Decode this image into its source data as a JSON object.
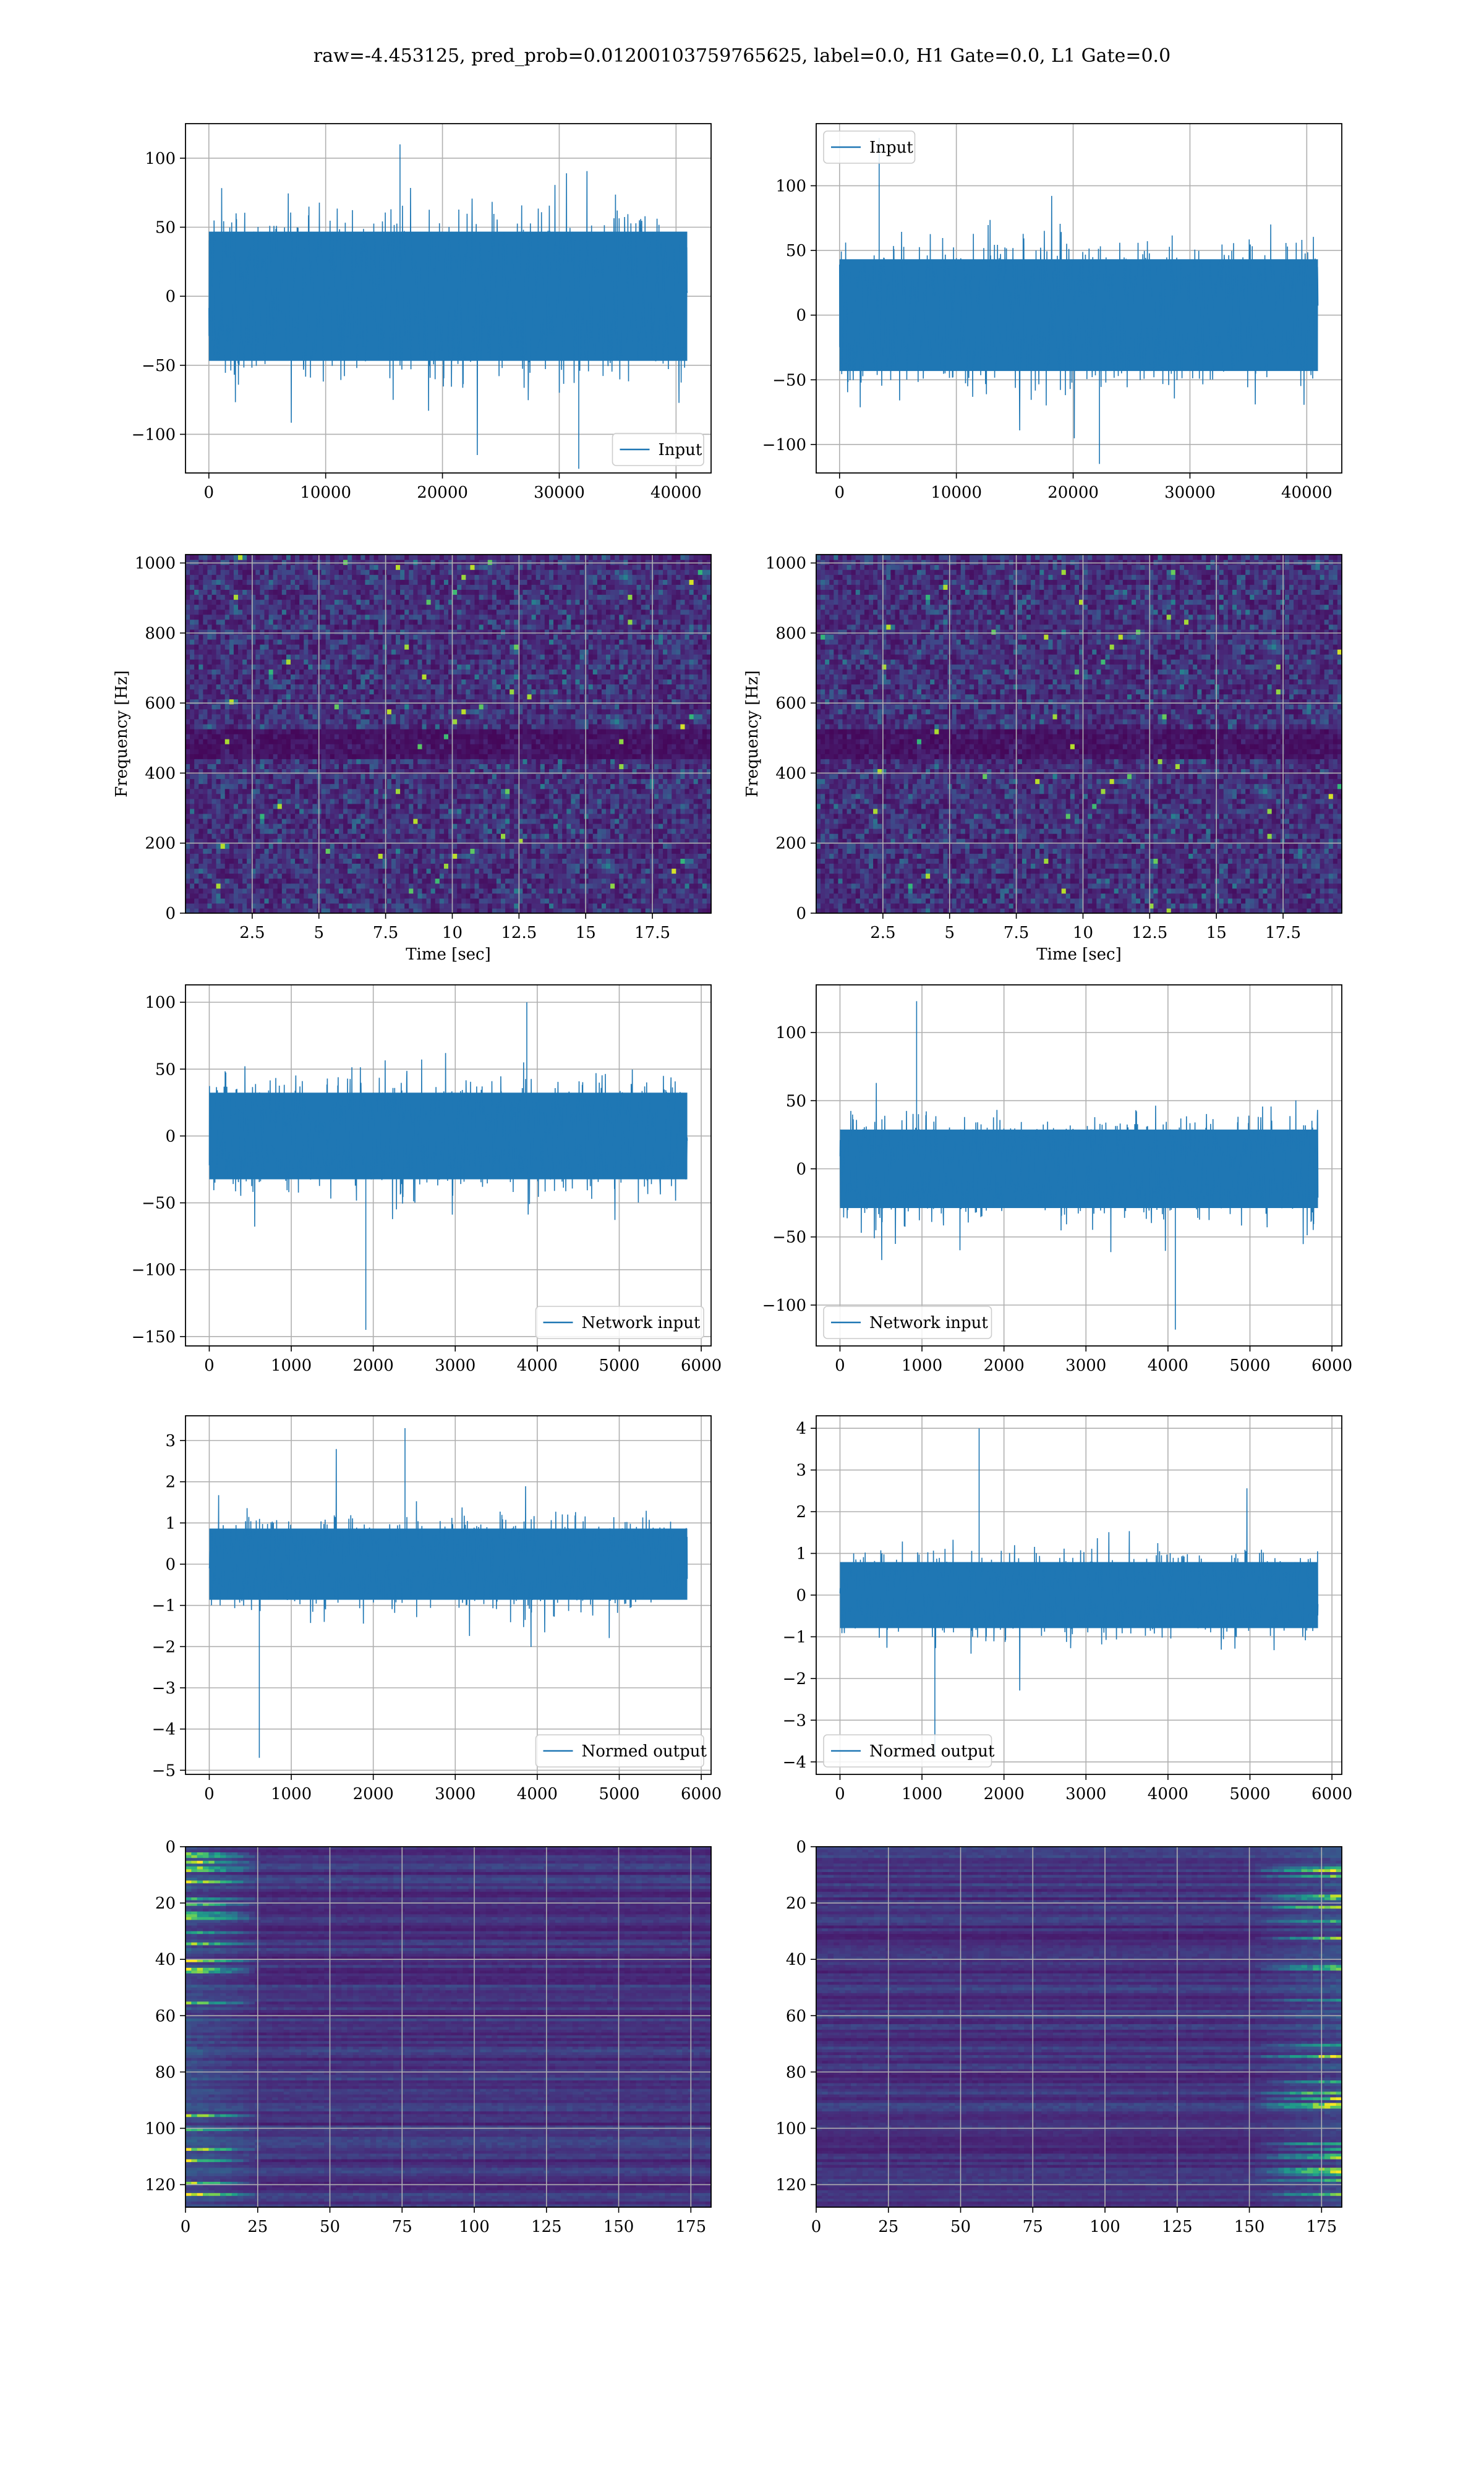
{
  "figure": {
    "suptitle": "raw=-4.453125, pred_prob=0.01200103759765625, label=0.0, H1 Gate=0.0, L1 Gate=0.0"
  },
  "colors": {
    "line": "#1f77b4",
    "grid": "#b0b0b0",
    "viridis": [
      "#440154",
      "#482878",
      "#3e4989",
      "#31688e",
      "#26828e",
      "#1f9e89",
      "#35b779",
      "#6ece58",
      "#b5de2b",
      "#fde725"
    ]
  },
  "chart_data": [
    {
      "type": "line",
      "row": 0,
      "col": 0,
      "series": [
        {
          "name": "Input",
          "x_range": [
            0,
            40960
          ],
          "typical_amplitude": [
            -65,
            65
          ],
          "extremes": [
            -125,
            110
          ]
        }
      ],
      "xlim": [
        -2000,
        43000
      ],
      "ylim": [
        -128,
        125
      ],
      "xticks": [
        0,
        10000,
        20000,
        30000,
        40000
      ],
      "yticks": [
        -100,
        -50,
        0,
        50,
        100
      ],
      "legend": "lower right",
      "grid": true,
      "xlabel": "",
      "ylabel": ""
    },
    {
      "type": "line",
      "row": 0,
      "col": 1,
      "series": [
        {
          "name": "Input",
          "x_range": [
            0,
            40960
          ],
          "typical_amplitude": [
            -60,
            60
          ],
          "extremes": [
            -115,
            137
          ]
        }
      ],
      "xlim": [
        -2000,
        43000
      ],
      "ylim": [
        -122,
        148
      ],
      "xticks": [
        0,
        10000,
        20000,
        30000,
        40000
      ],
      "yticks": [
        -100,
        -50,
        0,
        50,
        100
      ],
      "legend": "upper left",
      "grid": true,
      "xlabel": "",
      "ylabel": ""
    },
    {
      "type": "heatmap",
      "row": 1,
      "col": 0,
      "description_values": {
        "time_range": [
          0,
          19.7
        ],
        "freq_range": [
          0,
          1024
        ],
        "dark_band_freq": [
          440,
          520
        ]
      },
      "xlim": [
        0,
        19.7
      ],
      "ylim": [
        0,
        1024
      ],
      "xticks": [
        2.5,
        5.0,
        7.5,
        10.0,
        12.5,
        15.0,
        17.5
      ],
      "yticks": [
        0,
        200,
        400,
        600,
        800,
        1000
      ],
      "xlabel": "Time [sec]",
      "ylabel": "Frequency [Hz]",
      "grid": true
    },
    {
      "type": "heatmap",
      "row": 1,
      "col": 1,
      "description_values": {
        "time_range": [
          0,
          19.7
        ],
        "freq_range": [
          0,
          1024
        ],
        "dark_band_freq": [
          440,
          520
        ]
      },
      "xlim": [
        0,
        19.7
      ],
      "ylim": [
        0,
        1024
      ],
      "xticks": [
        2.5,
        5.0,
        7.5,
        10.0,
        12.5,
        15.0,
        17.5
      ],
      "yticks": [
        0,
        200,
        400,
        600,
        800,
        1000
      ],
      "xlabel": "Time [sec]",
      "ylabel": "Frequency [Hz]",
      "grid": true
    },
    {
      "type": "line",
      "row": 2,
      "col": 0,
      "series": [
        {
          "name": "Network input",
          "x_range": [
            0,
            5830
          ],
          "typical_amplitude": [
            -45,
            45
          ],
          "extremes": [
            -145,
            100
          ]
        }
      ],
      "xlim": [
        -290,
        6120
      ],
      "ylim": [
        -157,
        113
      ],
      "xticks": [
        0,
        1000,
        2000,
        3000,
        4000,
        5000,
        6000
      ],
      "yticks": [
        -150,
        -100,
        -50,
        0,
        50,
        100
      ],
      "legend": "lower right",
      "grid": true,
      "xlabel": "",
      "ylabel": ""
    },
    {
      "type": "line",
      "row": 2,
      "col": 1,
      "series": [
        {
          "name": "Network input",
          "x_range": [
            0,
            5830
          ],
          "typical_amplitude": [
            -40,
            40
          ],
          "extremes": [
            -118,
            123
          ]
        }
      ],
      "xlim": [
        -290,
        6120
      ],
      "ylim": [
        -130,
        135
      ],
      "xticks": [
        0,
        1000,
        2000,
        3000,
        4000,
        5000,
        6000
      ],
      "yticks": [
        -100,
        -50,
        0,
        50,
        100
      ],
      "legend": "lower left",
      "grid": true,
      "xlabel": "",
      "ylabel": ""
    },
    {
      "type": "line",
      "row": 3,
      "col": 0,
      "series": [
        {
          "name": "Normed output",
          "x_range": [
            0,
            5830
          ],
          "typical_amplitude": [
            -1.2,
            1.2
          ],
          "extremes": [
            -4.7,
            3.3
          ]
        }
      ],
      "xlim": [
        -290,
        6120
      ],
      "ylim": [
        -5.1,
        3.6
      ],
      "xticks": [
        0,
        1000,
        2000,
        3000,
        4000,
        5000,
        6000
      ],
      "yticks": [
        -5,
        -4,
        -3,
        -2,
        -1,
        0,
        1,
        2,
        3
      ],
      "legend": "lower right",
      "grid": true,
      "xlabel": "",
      "ylabel": ""
    },
    {
      "type": "line",
      "row": 3,
      "col": 1,
      "series": [
        {
          "name": "Normed output",
          "x_range": [
            0,
            5830
          ],
          "typical_amplitude": [
            -1.1,
            1.1
          ],
          "extremes": [
            -3.9,
            4.0
          ]
        }
      ],
      "xlim": [
        -290,
        6120
      ],
      "ylim": [
        -4.3,
        4.3
      ],
      "xticks": [
        0,
        1000,
        2000,
        3000,
        4000,
        5000,
        6000
      ],
      "yticks": [
        -4,
        -3,
        -2,
        -1,
        0,
        1,
        2,
        3,
        4
      ],
      "legend": "lower left",
      "grid": true,
      "xlabel": "",
      "ylabel": ""
    },
    {
      "type": "heatmap",
      "row": 4,
      "col": 0,
      "description_values": {
        "columns": 182,
        "rows": 128,
        "bright_region_columns": [
          0,
          25
        ]
      },
      "xlim": [
        0,
        182
      ],
      "ylim": [
        128,
        0
      ],
      "xticks": [
        0,
        25,
        50,
        75,
        100,
        125,
        150,
        175
      ],
      "yticks": [
        0,
        20,
        40,
        60,
        80,
        100,
        120
      ],
      "grid": true,
      "xlabel": "",
      "ylabel": ""
    },
    {
      "type": "heatmap",
      "row": 4,
      "col": 1,
      "description_values": {
        "columns": 182,
        "rows": 128,
        "bright_region_columns": [
          150,
          182
        ]
      },
      "xlim": [
        0,
        182
      ],
      "ylim": [
        128,
        0
      ],
      "xticks": [
        0,
        25,
        50,
        75,
        100,
        125,
        150,
        175
      ],
      "yticks": [
        0,
        20,
        40,
        60,
        80,
        100,
        120
      ],
      "grid": true,
      "xlabel": "",
      "ylabel": ""
    }
  ]
}
